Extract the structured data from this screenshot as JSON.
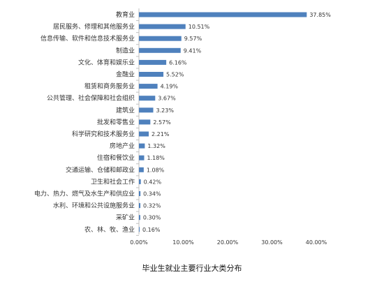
{
  "chart_data": {
    "type": "bar",
    "orientation": "horizontal",
    "title": "毕业生就业主要行业大类分布",
    "categories": [
      "教育业",
      "居民服务、修理和其他服务业",
      "信息传输、软件和信息技术服务业",
      "制造业",
      "文化、体育和娱乐业",
      "金融业",
      "租赁和商务服务业",
      "公共管理、社会保障和社会组织",
      "建筑业",
      "批发和零售业",
      "科学研究和技术服务业",
      "房地产业",
      "住宿和餐饮业",
      "交通运输、仓储和邮政业",
      "卫生和社会工作",
      "电力、热力、燃气及水生产和供应业",
      "水利、环境和公共设施服务业",
      "采矿业",
      "农、林、牧、渔业"
    ],
    "values": [
      37.85,
      10.51,
      9.57,
      9.41,
      6.16,
      5.52,
      4.19,
      3.67,
      3.23,
      2.57,
      2.21,
      1.32,
      1.18,
      1.08,
      0.42,
      0.34,
      0.32,
      0.3,
      0.16
    ],
    "value_labels": [
      "37.85%",
      "10.51%",
      "9.57%",
      "9.41%",
      "6.16%",
      "5.52%",
      "4.19%",
      "3.67%",
      "3.23%",
      "2.57%",
      "2.21%",
      "1.32%",
      "1.18%",
      "1.08%",
      "0.42%",
      "0.34%",
      "0.32%",
      "0.30%",
      "0.16%"
    ],
    "xlim": [
      0,
      40
    ],
    "x_ticks": [
      0,
      10,
      20,
      30,
      40
    ],
    "x_tick_labels": [
      "0.00%",
      "10.00%",
      "20.00%",
      "30.00%",
      "40.00%"
    ],
    "grid": false,
    "legend": "none",
    "bar_color": "#4f81bd"
  }
}
